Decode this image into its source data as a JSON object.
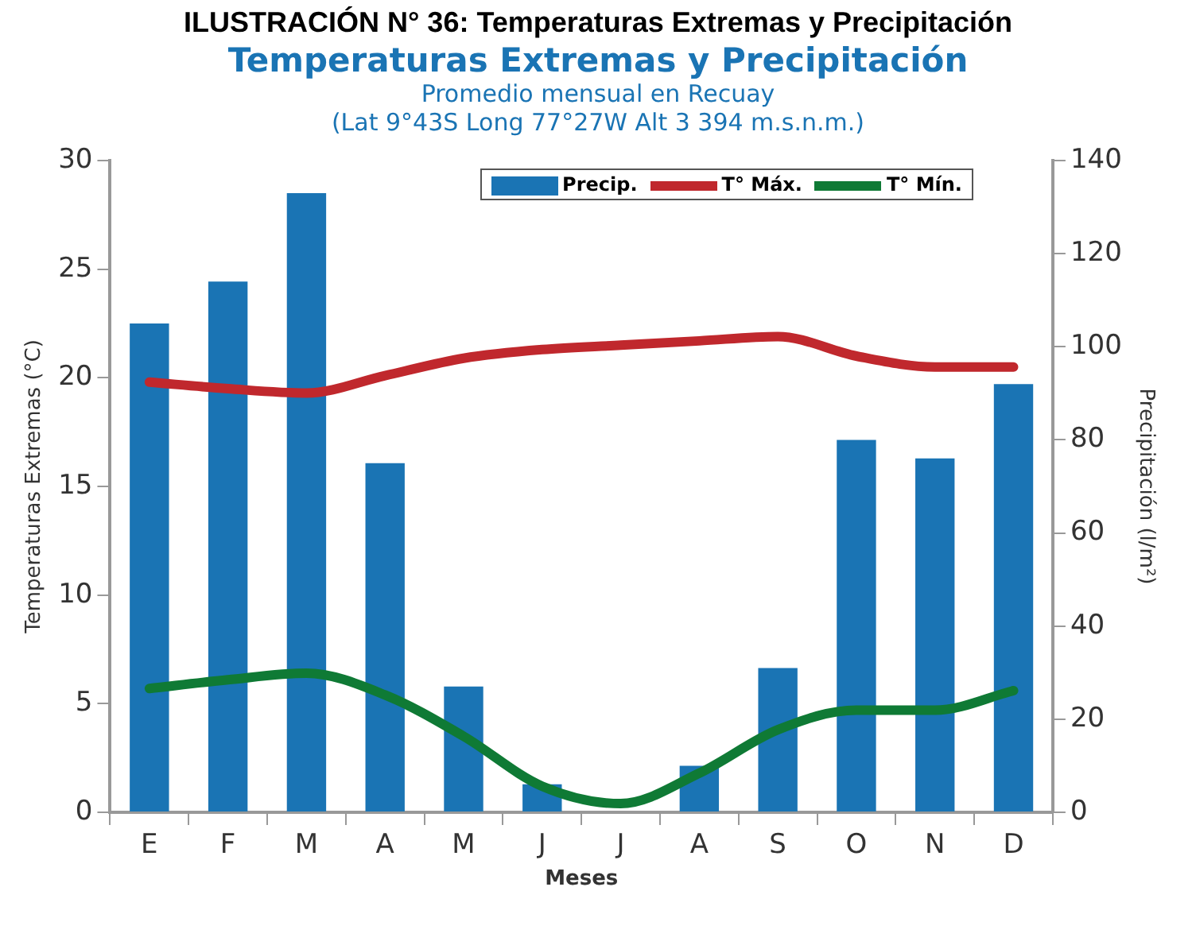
{
  "chart_data": {
    "type": "bar",
    "title": "Temperaturas Extremas y Precipitación",
    "subtitle": "Promedio mensual en Recuay\n(Lat 9°43S Long 77°27W Alt 3 394 m.s.n.m.)",
    "annotations": [
      "ILUSTRACIÓN N° 36: Temperaturas Extremas y Precipitación"
    ],
    "xlabel": "Meses",
    "ylabel": "Temperaturas Extremas (°C)",
    "y2label": "Precipitación (l/m²)",
    "categories": [
      "E",
      "F",
      "M",
      "A",
      "M",
      "J",
      "J",
      "A",
      "S",
      "O",
      "N",
      "D"
    ],
    "series": [
      {
        "name": "Precip.",
        "axis": "y2",
        "color": "#1a74b4",
        "values": [
          105,
          114,
          133,
          75,
          27,
          6,
          0,
          10,
          31,
          80,
          76,
          92
        ]
      },
      {
        "name": "T° Máx.",
        "type": "line",
        "axis": "y",
        "color": "#c0282d",
        "values": [
          19.8,
          19.5,
          19.3,
          20.1,
          20.9,
          21.3,
          21.5,
          21.7,
          21.9,
          21.0,
          20.5,
          20.5
        ]
      },
      {
        "name": "T° Mín.",
        "type": "line",
        "axis": "y",
        "color": "#0f7a35",
        "values": [
          5.7,
          6.1,
          6.4,
          5.4,
          3.5,
          1.2,
          0.4,
          1.8,
          3.8,
          4.7,
          4.7,
          5.6
        ]
      }
    ],
    "ylim": [
      0,
      30
    ],
    "yticks": [
      0,
      5,
      10,
      15,
      20,
      25,
      30
    ],
    "y2lim": [
      0,
      140
    ],
    "y2ticks": [
      0,
      20,
      40,
      60,
      80,
      100,
      120,
      140
    ],
    "grid": false,
    "legend": "top right",
    "marker": "none",
    "line_style": "solid"
  }
}
